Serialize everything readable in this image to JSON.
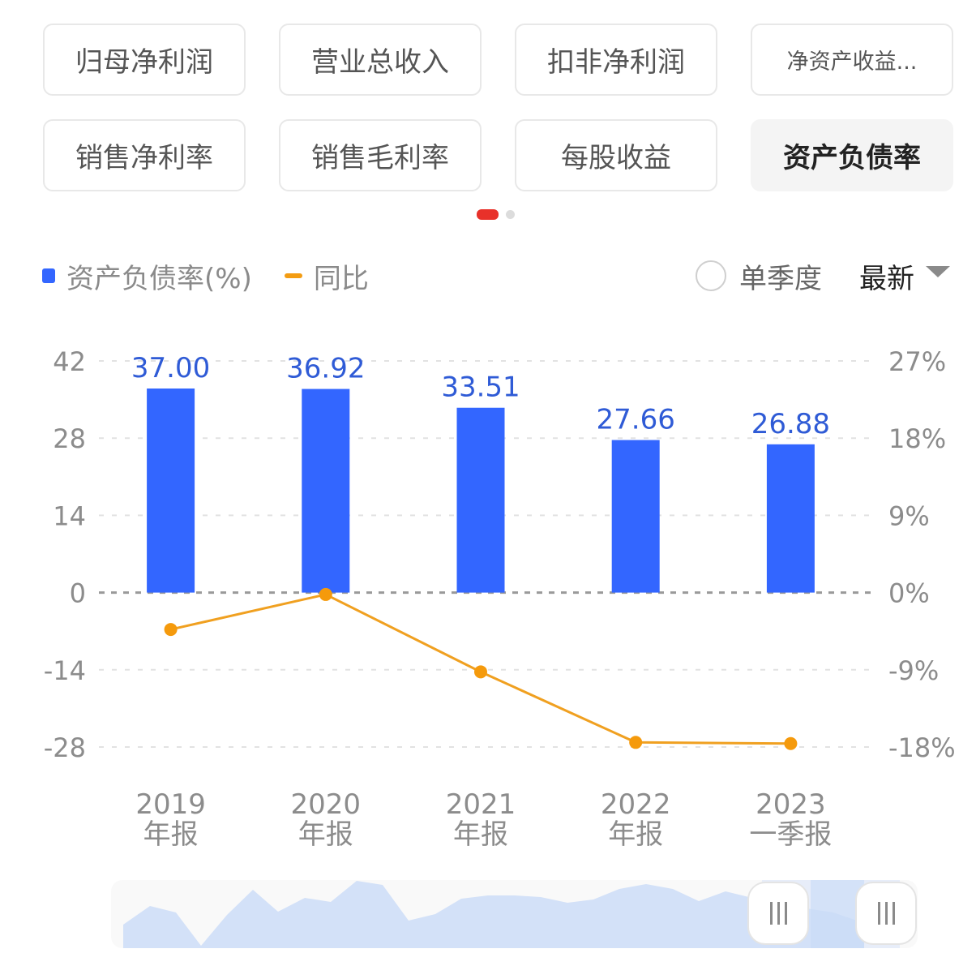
{
  "metrics": {
    "row1": [
      {
        "label": "归母净利润",
        "active": false
      },
      {
        "label": "营业总收入",
        "active": false
      },
      {
        "label": "扣非净利润",
        "active": false
      },
      {
        "label": "净资产收益...",
        "active": false
      }
    ],
    "row2": [
      {
        "label": "销售净利率",
        "active": false
      },
      {
        "label": "销售毛利率",
        "active": false
      },
      {
        "label": "每股收益",
        "active": false
      },
      {
        "label": "资产负债率",
        "active": true
      }
    ]
  },
  "pager": {
    "pages": 2,
    "current": 1,
    "active_color": "#e8312a"
  },
  "legend": {
    "bar_label": "资产负债率(%)",
    "line_label": "同比",
    "bar_color": "#3366ff",
    "line_color": "#f39c12"
  },
  "controls": {
    "single_quarter_label": "单季度",
    "single_quarter_checked": false,
    "period_label": "最新"
  },
  "chart_data": {
    "type": "bar",
    "title": "资产负债率",
    "categories": [
      "2019 年报",
      "2020 年报",
      "2021 年报",
      "2022 年报",
      "2023 一季报"
    ],
    "x_labels": [
      {
        "year": "2019",
        "period": "年报"
      },
      {
        "year": "2020",
        "period": "年报"
      },
      {
        "year": "2021",
        "period": "年报"
      },
      {
        "year": "2022",
        "period": "年报"
      },
      {
        "year": "2023",
        "period": "一季报"
      }
    ],
    "series": [
      {
        "name": "资产负债率(%)",
        "type": "bar",
        "axis": "left",
        "values": [
          37.0,
          36.92,
          33.51,
          27.66,
          26.88
        ],
        "labels": [
          "37.00",
          "36.92",
          "33.51",
          "27.66",
          "26.88"
        ]
      },
      {
        "name": "同比",
        "type": "line",
        "axis": "right",
        "unit": "%",
        "values": [
          -4.3,
          -0.22,
          -9.24,
          -17.46,
          -17.6
        ]
      }
    ],
    "left_axis": {
      "ticks": [
        "42",
        "28",
        "14",
        "0",
        "-14",
        "-28"
      ],
      "ylim": [
        -28,
        42
      ]
    },
    "right_axis": {
      "ticks": [
        "27%",
        "18%",
        "9%",
        "0%",
        "-9%",
        "-18%"
      ],
      "ylim": [
        -18,
        27
      ]
    },
    "grid": "dashed",
    "legend_position": "top"
  },
  "minimap": {
    "handle_left_icon": "grip-icon",
    "handle_right_icon": "grip-icon"
  }
}
